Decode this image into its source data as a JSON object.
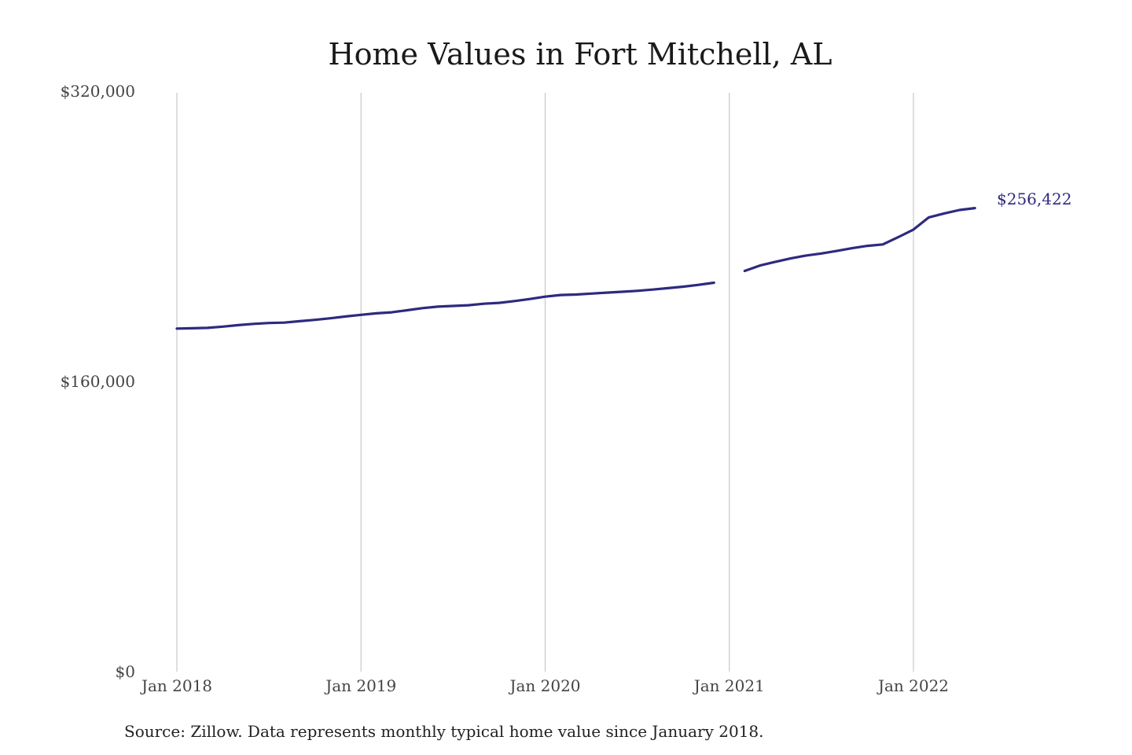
{
  "chart_data": {
    "type": "line",
    "title": "Home Values in Fort Mitchell, AL",
    "source": "Source: Zillow. Data represents monthly typical home value since January 2018.",
    "xlabel": "",
    "ylabel": "",
    "x_ticks": [
      {
        "label": "Jan 2018",
        "value": "2018-01"
      },
      {
        "label": "Jan 2019",
        "value": "2019-01"
      },
      {
        "label": "Jan 2020",
        "value": "2020-01"
      },
      {
        "label": "Jan 2021",
        "value": "2021-01"
      },
      {
        "label": "Jan 2022",
        "value": "2022-01"
      }
    ],
    "y_ticks": [
      {
        "label": "$320,000",
        "value": 320000
      },
      {
        "label": "$160,000",
        "value": 160000
      },
      {
        "label": "$0",
        "value": 0
      }
    ],
    "ylim": [
      0,
      320000
    ],
    "xlim": [
      "2018-01",
      "2022-05"
    ],
    "grid": {
      "vertical": true,
      "horizontal": false
    },
    "legend": "none",
    "line_color": "#2e2a7f",
    "end_label": "$256,422",
    "segments": [
      {
        "x": [
          "2018-01",
          "2018-02",
          "2018-03",
          "2018-04",
          "2018-05",
          "2018-06",
          "2018-07",
          "2018-08",
          "2018-09",
          "2018-10",
          "2018-11",
          "2018-12",
          "2019-01",
          "2019-02",
          "2019-03",
          "2019-04",
          "2019-05",
          "2019-06",
          "2019-07",
          "2019-08",
          "2019-09",
          "2019-10",
          "2019-11",
          "2019-12",
          "2020-01",
          "2020-02",
          "2020-03",
          "2020-04",
          "2020-05",
          "2020-06",
          "2020-07",
          "2020-08",
          "2020-09",
          "2020-10",
          "2020-11",
          "2020-12"
        ],
        "y": [
          190000,
          190200,
          190400,
          191100,
          191900,
          192600,
          193100,
          193300,
          194100,
          194800,
          195700,
          196700,
          197600,
          198400,
          199000,
          200100,
          201300,
          202100,
          202500,
          202900,
          203700,
          204200,
          205200,
          206300,
          207600,
          208500,
          208800,
          209300,
          209800,
          210300,
          210800,
          211500,
          212300,
          213100,
          214100,
          215300
        ]
      },
      {
        "x": [
          "2021-02",
          "2021-03",
          "2021-04",
          "2021-05",
          "2021-06",
          "2021-07",
          "2021-08",
          "2021-09",
          "2021-10",
          "2021-11",
          "2021-12",
          "2022-01",
          "2022-02",
          "2022-03",
          "2022-04",
          "2022-05"
        ],
        "y": [
          221800,
          224800,
          226800,
          228700,
          230300,
          231400,
          232800,
          234300,
          235600,
          236400,
          240400,
          244600,
          251300,
          253500,
          255400,
          256422
        ]
      }
    ]
  }
}
